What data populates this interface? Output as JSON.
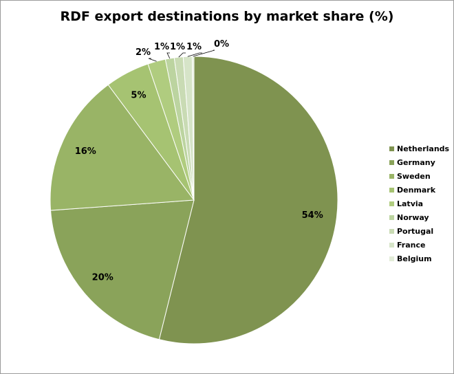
{
  "chart_data": {
    "type": "pie",
    "title": "RDF export destinations by market share (%)",
    "categories": [
      "Netherlands",
      "Germany",
      "Sweden",
      "Denmark",
      "Latvia",
      "Norway",
      "Portugal",
      "France",
      "Belgium"
    ],
    "values": [
      54,
      20,
      16,
      5,
      2,
      1,
      1,
      1,
      0
    ],
    "labels": [
      "54%",
      "20%",
      "16%",
      "5%",
      "2%",
      "1%",
      "1%",
      "1%",
      "0%"
    ],
    "colors": [
      "#7f9350",
      "#8aa35a",
      "#99b466",
      "#a6c372",
      "#b0cc7f",
      "#bcd4a0",
      "#c9dbb4",
      "#d6e4c8",
      "#e2ecd8"
    ],
    "legend_position": "right",
    "start_angle_deg": 0,
    "direction": "clockwise"
  }
}
